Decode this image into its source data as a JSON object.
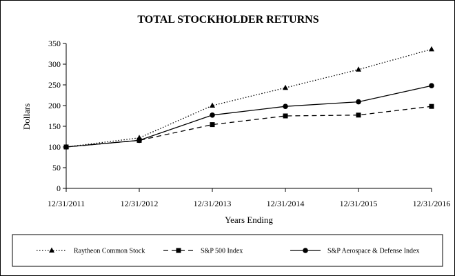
{
  "chart_data": {
    "type": "line",
    "title": "TOTAL STOCKHOLDER RETURNS",
    "xlabel": "Years Ending",
    "ylabel": "Dollars",
    "categories": [
      "12/31/2011",
      "12/31/2012",
      "12/31/2013",
      "12/31/2014",
      "12/31/2015",
      "12/31/2016"
    ],
    "ylim": [
      0,
      350
    ],
    "yticks": [
      0,
      50,
      100,
      150,
      200,
      250,
      300,
      350
    ],
    "grid": false,
    "legend_position": "bottom",
    "series": [
      {
        "name": "Raytheon Common Stock",
        "values": [
          100,
          122,
          200,
          243,
          287,
          336
        ],
        "line_style": "dotted",
        "marker": "triangle"
      },
      {
        "name": "S&P 500 Index",
        "values": [
          100,
          116,
          154,
          175,
          177,
          198
        ],
        "line_style": "dashed",
        "marker": "square"
      },
      {
        "name": "S&P Aerospace & Defense Index",
        "values": [
          100,
          116,
          177,
          198,
          209,
          248
        ],
        "line_style": "solid",
        "marker": "circle"
      }
    ]
  }
}
